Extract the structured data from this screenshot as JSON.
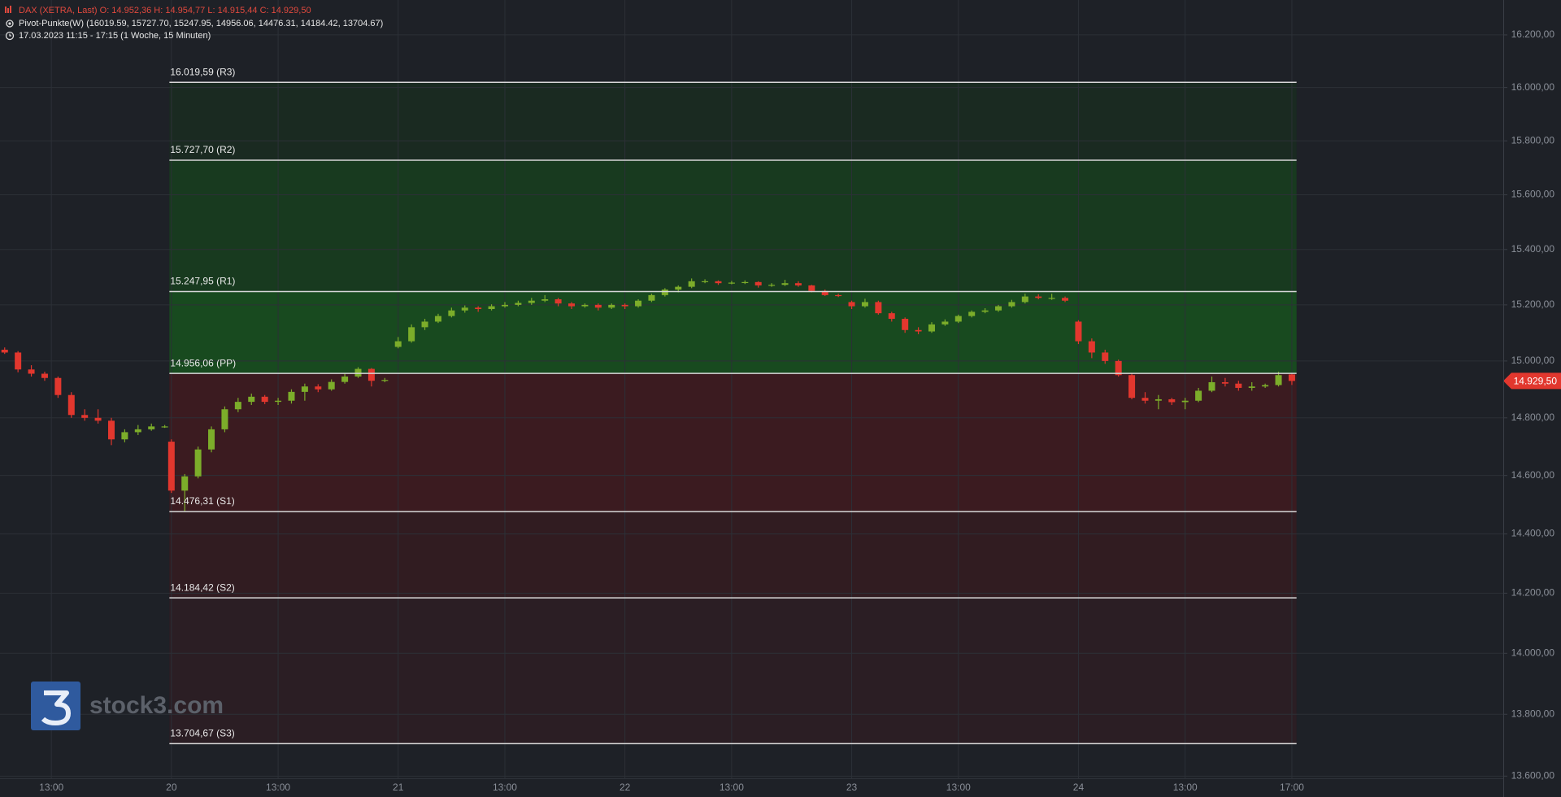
{
  "chart_data": {
    "type": "candlestick",
    "legend_lines": [
      "DAX (XETRA, Last)  O: 14.952,36  H: 14.954,77  L: 14.915,44  C: 14.929,50",
      "Pivot-Punkte(W)  (16019.59,  15727.70,  15247.95,  14956.06,  14476.31,  14184.42,  13704.67)",
      "17.03.2023 11:15 - 17:15   (1 Woche, 15 Minuten)"
    ],
    "log_scale": true,
    "grid": true,
    "up_color": "#7cad2a",
    "down_color": "#e2372e",
    "ylim": [
      13593,
      16334
    ],
    "yticks": [
      {
        "value": 13600,
        "label": "13.600,00"
      },
      {
        "value": 13800,
        "label": "13.800,00"
      },
      {
        "value": 14000,
        "label": "14.000,00"
      },
      {
        "value": 14200,
        "label": "14.200,00"
      },
      {
        "value": 14400,
        "label": "14.400,00"
      },
      {
        "value": 14600,
        "label": "14.600,00"
      },
      {
        "value": 14800,
        "label": "14.800,00"
      },
      {
        "value": 15000,
        "label": "15.000,00"
      },
      {
        "value": 15200,
        "label": "15.200,00"
      },
      {
        "value": 15400,
        "label": "15.400,00"
      },
      {
        "value": 15600,
        "label": "15.600,00"
      },
      {
        "value": 15800,
        "label": "15.800,00"
      },
      {
        "value": 16000,
        "label": "16.000,00"
      },
      {
        "value": 16200,
        "label": "16.200,00"
      }
    ],
    "xlim": [
      -25.7,
      199.7
    ],
    "xticks": [
      {
        "value": -18,
        "label": "13:00"
      },
      {
        "value": 0,
        "label": "20"
      },
      {
        "value": 16,
        "label": "13:00"
      },
      {
        "value": 34,
        "label": "21"
      },
      {
        "value": 50,
        "label": "13:00"
      },
      {
        "value": 68,
        "label": "22"
      },
      {
        "value": 84,
        "label": "13:00"
      },
      {
        "value": 102,
        "label": "23"
      },
      {
        "value": 118,
        "label": "13:00"
      },
      {
        "value": 136,
        "label": "24"
      },
      {
        "value": 152,
        "label": "13:00"
      },
      {
        "value": 168,
        "label": "17:00"
      }
    ],
    "pivots": [
      16019.59,
      15727.7,
      15247.95,
      14956.06,
      14476.31,
      14184.42,
      13704.67
    ],
    "pivot_labels": [
      "16.019,59 (R3)",
      "15.727,70 (R2)",
      "15.247,95 (R1)",
      "14.956,06 (PP)",
      "14.476,31 (S1)",
      "14.184,42 (S2)",
      "13.704,67 (S3)"
    ],
    "last": 14929.5,
    "last_label": "14.929,50",
    "watermark": "stock3.com",
    "x": [
      -25,
      -23,
      -21,
      -19,
      -17,
      -15,
      -13,
      -11,
      -9,
      -7,
      -5,
      -3,
      -1,
      0,
      2,
      4,
      6,
      8,
      10,
      12,
      14,
      16,
      18,
      20,
      22,
      24,
      26,
      28,
      30,
      32,
      34,
      36,
      38,
      40,
      42,
      44,
      46,
      48,
      50,
      52,
      54,
      56,
      58,
      60,
      62,
      64,
      66,
      68,
      70,
      72,
      74,
      76,
      78,
      80,
      82,
      84,
      86,
      88,
      90,
      92,
      94,
      96,
      98,
      100,
      102,
      104,
      106,
      108,
      110,
      112,
      114,
      116,
      118,
      120,
      122,
      124,
      126,
      128,
      130,
      132,
      134,
      136,
      138,
      140,
      142,
      144,
      146,
      148,
      150,
      152,
      154,
      156,
      158,
      160,
      162,
      164,
      166,
      168
    ],
    "open": [
      15040,
      15030,
      14970,
      14955,
      14940,
      14880,
      14810,
      14800,
      14790,
      14725,
      14750,
      14760,
      14770,
      14717,
      14548,
      14597,
      14690,
      14760,
      14830,
      14856,
      14874,
      14856,
      14860,
      14891,
      14910,
      14900,
      14926,
      14945,
      14972,
      14930,
      15050,
      15070,
      15120,
      15140,
      15160,
      15180,
      15190,
      15185,
      15195,
      15200,
      15207,
      15215,
      15220,
      15205,
      15195,
      15200,
      15190,
      15200,
      15195,
      15215,
      15235,
      15255,
      15265,
      15285,
      15285,
      15278,
      15280,
      15282,
      15270,
      15272,
      15278,
      15270,
      15250,
      15235,
      15210,
      15195,
      15210,
      15170,
      15150,
      15110,
      15105,
      15130,
      15140,
      15160,
      15175,
      15180,
      15195,
      15210,
      15230,
      15225,
      15225,
      15140,
      15070,
      15030,
      15000,
      14950,
      14870,
      14860,
      14865,
      14855,
      14860,
      14895,
      14925,
      14920,
      14905,
      14910,
      14915,
      14952.36
    ],
    "high": [
      15048,
      15035,
      14985,
      14962,
      14945,
      14890,
      14830,
      14830,
      14800,
      14760,
      14775,
      14780,
      14775,
      14725,
      14605,
      14700,
      14770,
      14840,
      14870,
      14885,
      14880,
      14870,
      14900,
      14920,
      14918,
      14935,
      14955,
      14978,
      14975,
      14940,
      15085,
      15130,
      15150,
      15168,
      15190,
      15198,
      15195,
      15202,
      15210,
      15215,
      15225,
      15235,
      15225,
      15210,
      15205,
      15205,
      15205,
      15205,
      15220,
      15240,
      15260,
      15270,
      15295,
      15292,
      15288,
      15286,
      15288,
      15285,
      15278,
      15290,
      15285,
      15272,
      15255,
      15240,
      15215,
      15222,
      15215,
      15175,
      15155,
      15120,
      15138,
      15148,
      15165,
      15180,
      15188,
      15200,
      15218,
      15240,
      15238,
      15240,
      15230,
      15145,
      15080,
      15040,
      15005,
      14955,
      14890,
      14880,
      14870,
      14870,
      14905,
      14945,
      14940,
      14930,
      14925,
      14920,
      14962,
      14954.77
    ],
    "low": [
      15025,
      14960,
      14945,
      14930,
      14870,
      14800,
      14790,
      14780,
      14705,
      14715,
      14740,
      14755,
      14765,
      14540,
      14476,
      14590,
      14680,
      14750,
      14820,
      14845,
      14848,
      14845,
      14850,
      14860,
      14890,
      14895,
      14920,
      14940,
      14910,
      14925,
      15045,
      15065,
      15110,
      15135,
      15155,
      15172,
      15175,
      15180,
      15190,
      15195,
      15200,
      15210,
      15195,
      15185,
      15190,
      15180,
      15185,
      15185,
      15190,
      15210,
      15230,
      15245,
      15260,
      15278,
      15272,
      15274,
      15275,
      15262,
      15265,
      15268,
      15265,
      15245,
      15232,
      15228,
      15185,
      15190,
      15165,
      15140,
      15100,
      15095,
      15100,
      15125,
      15135,
      15155,
      15170,
      15175,
      15190,
      15205,
      15220,
      15218,
      15210,
      15060,
      15010,
      14990,
      14945,
      14865,
      14850,
      14830,
      14845,
      14830,
      14855,
      14890,
      14910,
      14895,
      14895,
      14905,
      14910,
      14915.44
    ],
    "close": [
      15030,
      14970,
      14955,
      14940,
      14880,
      14810,
      14800,
      14790,
      14725,
      14750,
      14760,
      14770,
      14770,
      14548,
      14597,
      14690,
      14760,
      14830,
      14856,
      14874,
      14856,
      14860,
      14891,
      14910,
      14900,
      14926,
      14945,
      14972,
      14930,
      14933,
      15070,
      15120,
      15140,
      15160,
      15180,
      15190,
      15185,
      15195,
      15200,
      15207,
      15215,
      15220,
      15205,
      15195,
      15200,
      15190,
      15200,
      15195,
      15215,
      15235,
      15255,
      15265,
      15285,
      15285,
      15278,
      15280,
      15282,
      15270,
      15272,
      15278,
      15270,
      15250,
      15235,
      15232,
      15195,
      15210,
      15170,
      15150,
      15110,
      15105,
      15130,
      15140,
      15160,
      15175,
      15180,
      15195,
      15210,
      15230,
      15225,
      15225,
      15215,
      15070,
      15030,
      15000,
      14950,
      14870,
      14860,
      14865,
      14855,
      14860,
      14895,
      14925,
      14920,
      14905,
      14910,
      14915,
      14950,
      14929.5
    ]
  }
}
